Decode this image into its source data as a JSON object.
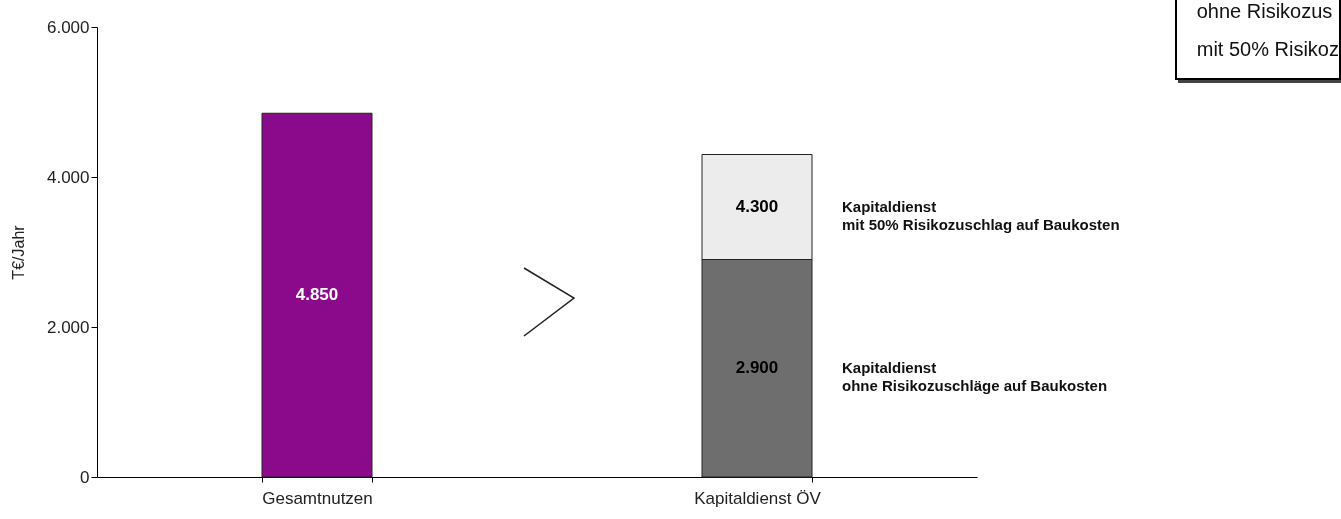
{
  "chart_data": {
    "type": "bar",
    "stacked": true,
    "ylabel": "T€/Jahr",
    "categories": [
      "Gesamtnutzen",
      "Kapitaldienst ÖV"
    ],
    "series": [
      {
        "color": "#8b0a8b",
        "values": [
          4850,
          null
        ],
        "value_labels": [
          "4.850",
          null
        ]
      },
      {
        "name": "Kapitaldienst\nohne Risikozuschläge auf Baukosten",
        "color": "#6e6e6e",
        "values": [
          null,
          2900
        ],
        "value_labels": [
          null,
          "2.900"
        ]
      },
      {
        "name": "Kapitaldienst\nmit 50% Risikozuschlag auf Baukosten",
        "color": "#ececec",
        "values": [
          null,
          1400
        ]
      }
    ],
    "ylim": [
      0,
      6000
    ],
    "yticks": [
      {
        "value": 0,
        "label": "0"
      },
      {
        "value": 2000,
        "label": "2.000"
      },
      {
        "value": 4000,
        "label": "4.000"
      },
      {
        "value": 6000,
        "label": "6.000"
      }
    ],
    "totals": [
      null,
      "4.300"
    ],
    "grid": false,
    "annotations": [
      "ohne Risikozus",
      "mit 50% Risikoz"
    ]
  }
}
